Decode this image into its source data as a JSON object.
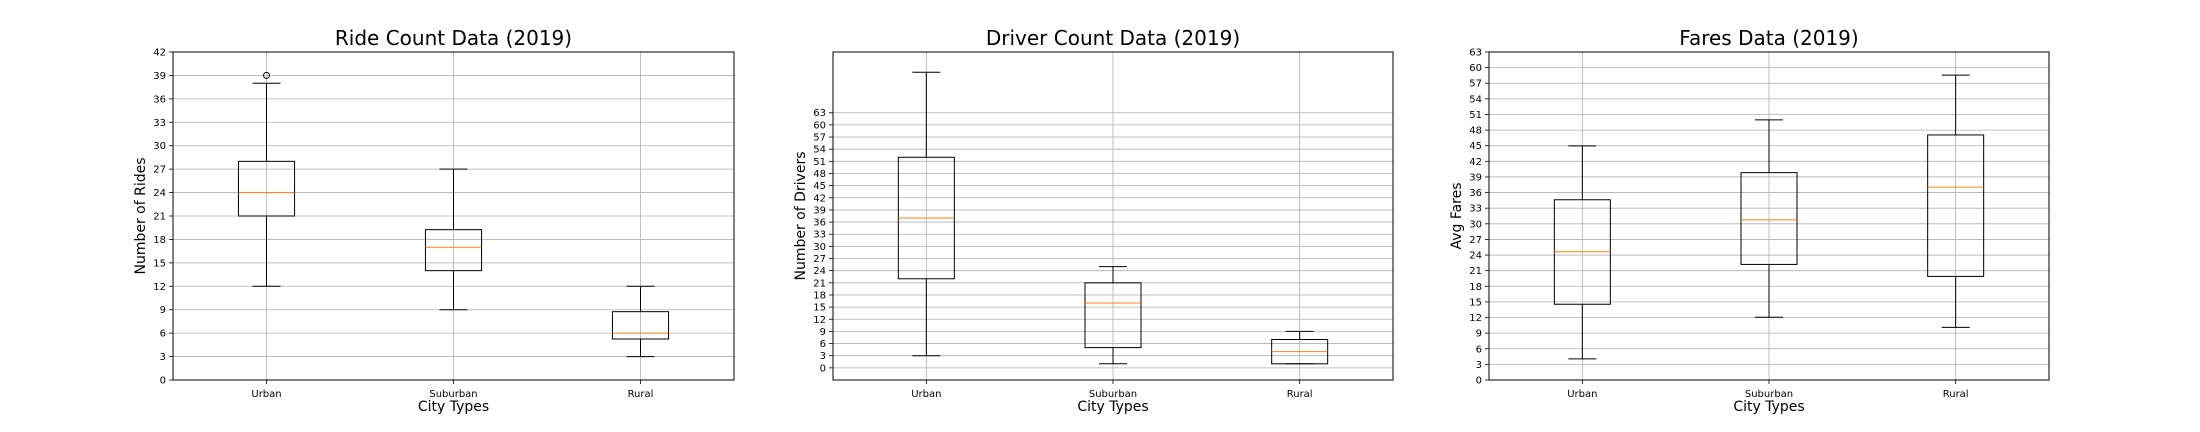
{
  "chart_data": [
    {
      "type": "box",
      "title": "Ride Count Data (2019)",
      "xlabel": "City Types",
      "ylabel": "Number of Rides",
      "categories": [
        "Urban",
        "Suburban",
        "Rural"
      ],
      "ylim": [
        0,
        42
      ],
      "yticks": [
        "0",
        "3",
        "6",
        "9",
        "12",
        "15",
        "18",
        "21",
        "24",
        "27",
        "30",
        "33",
        "36",
        "39",
        "42"
      ],
      "grid": true,
      "boxes": [
        {
          "whislo": 12,
          "q1": 21,
          "med": 24,
          "q3": 28,
          "whishi": 38,
          "fliers": [
            39
          ]
        },
        {
          "whislo": 9,
          "q1": 14,
          "med": 17,
          "q3": 19.25,
          "whishi": 27,
          "fliers": []
        },
        {
          "whislo": 3,
          "q1": 5.25,
          "med": 6,
          "q3": 8.75,
          "whishi": 12,
          "fliers": []
        }
      ]
    },
    {
      "type": "box",
      "title": "Driver Count Data (2019)",
      "xlabel": "City Types",
      "ylabel": "Number of Drivers",
      "categories": [
        "Urban",
        "Suburban",
        "Rural"
      ],
      "ylim": [
        -3,
        78
      ],
      "yticks": [
        "0",
        "3",
        "6",
        "9",
        "12",
        "15",
        "18",
        "21",
        "24",
        "27",
        "30",
        "33",
        "36",
        "39",
        "42",
        "45",
        "48",
        "51",
        "54",
        "57",
        "60",
        "63"
      ],
      "grid": true,
      "boxes": [
        {
          "whislo": 3,
          "q1": 22,
          "med": 37,
          "q3": 52,
          "whishi": 73,
          "fliers": []
        },
        {
          "whislo": 1,
          "q1": 5,
          "med": 16,
          "q3": 21,
          "whishi": 25,
          "fliers": []
        },
        {
          "whislo": 1,
          "q1": 1,
          "med": 4,
          "q3": 7,
          "whishi": 9,
          "fliers": []
        }
      ]
    },
    {
      "type": "box",
      "title": "Fares Data (2019)",
      "xlabel": "City Types",
      "ylabel": "Avg Fares",
      "categories": [
        "Urban",
        "Suburban",
        "Rural"
      ],
      "ylim": [
        0,
        63
      ],
      "yticks": [
        "0",
        "3",
        "6",
        "9",
        "12",
        "15",
        "18",
        "21",
        "24",
        "27",
        "30",
        "33",
        "36",
        "39",
        "42",
        "45",
        "48",
        "51",
        "54",
        "57",
        "60",
        "63"
      ],
      "grid": true,
      "boxes": [
        {
          "whislo": 4.05,
          "q1": 14.55,
          "med": 24.64,
          "q3": 34.62,
          "whishi": 44.97,
          "fliers": []
        },
        {
          "whislo": 12.05,
          "q1": 22.2,
          "med": 30.75,
          "q3": 39.83,
          "whishi": 49.96,
          "fliers": []
        },
        {
          "whislo": 10.11,
          "q1": 19.9,
          "med": 37.05,
          "q3": 47.07,
          "whishi": 58.55,
          "fliers": []
        }
      ]
    }
  ]
}
